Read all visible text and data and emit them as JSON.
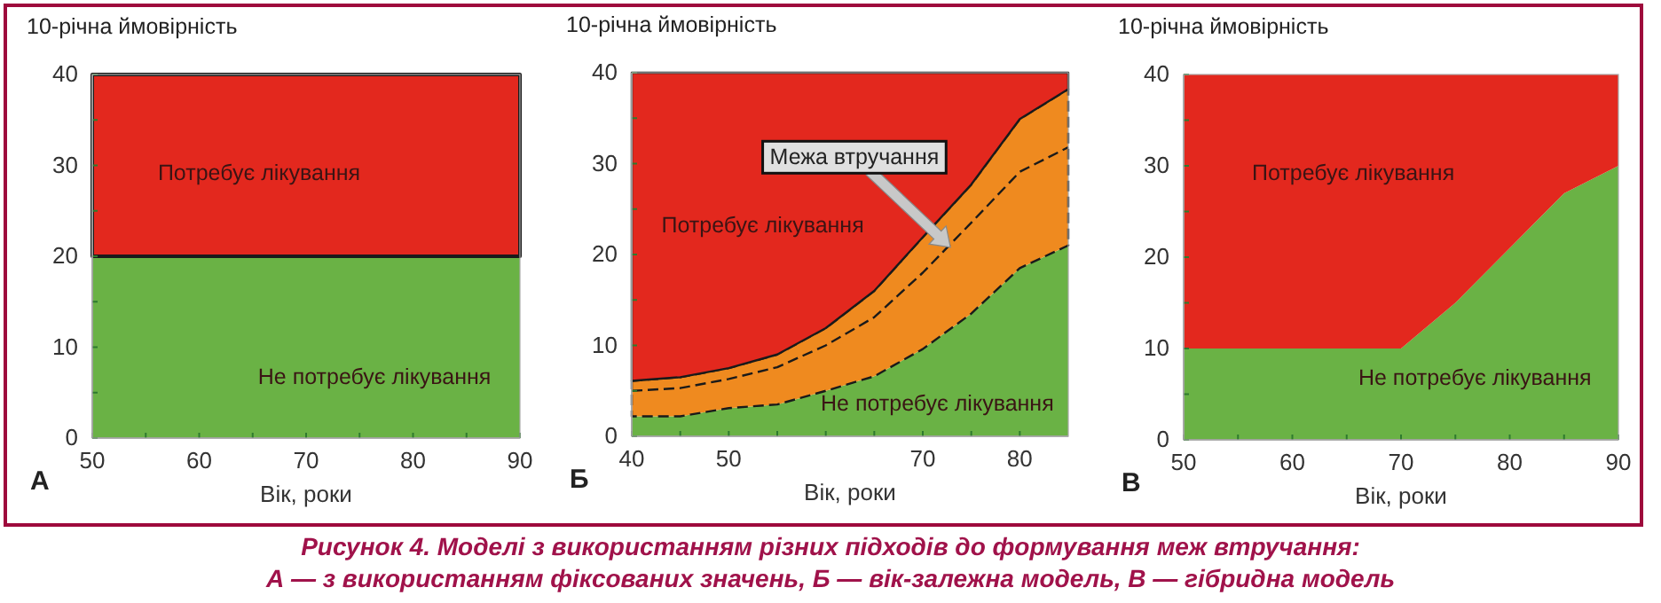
{
  "chart_data": [
    {
      "type": "area",
      "title": "А",
      "xlabel": "Вік, роки",
      "ylabel": "10-річна ймовірність",
      "stacked": true,
      "x": [
        50,
        90
      ],
      "xlim": [
        50,
        90
      ],
      "ylim": [
        0,
        40
      ],
      "xticks": [
        50,
        {
          "value": 55,
          "label": null
        },
        60,
        {
          "value": 65,
          "label": null
        },
        70,
        {
          "value": 75,
          "label": null
        },
        80,
        {
          "value": 85,
          "label": null
        },
        90
      ],
      "yticks": [
        0,
        {
          "value": 5,
          "label": null
        },
        10,
        {
          "value": 15,
          "label": null
        },
        20,
        {
          "value": 25,
          "label": null
        },
        30,
        {
          "value": 35,
          "label": null
        },
        40
      ],
      "series": [
        {
          "name": "Не потребує лікування",
          "color": "#6ab245",
          "values": [
            20,
            20
          ]
        },
        {
          "name": "Потребує лікування",
          "color": "#e3281e",
          "line_style": "solid",
          "values": [
            20,
            20
          ]
        }
      ],
      "annotations": [
        "Рисунок 4. Моделі з використанням різних підходів до формування меж втручання:",
        "А — з використанням фіксованих значень, Б — вік-залежна модель, В — гібридна модель"
      ]
    },
    {
      "type": "area",
      "title": "Б",
      "xlabel": "Вік, роки",
      "ylabel": "10-річна ймовірність",
      "stacked": true,
      "x": [
        40,
        45,
        50,
        55,
        60,
        65,
        70,
        75,
        80,
        85
      ],
      "xlim": [
        40,
        85
      ],
      "ylim": [
        0,
        40
      ],
      "xticks": [
        40,
        {
          "value": 45,
          "label": null
        },
        50,
        {
          "value": 55,
          "label": null
        },
        {
          "value": 60,
          "label": null
        },
        {
          "value": 65,
          "label": null
        },
        70,
        {
          "value": 75,
          "label": null
        },
        80
      ],
      "yticks": [
        0,
        {
          "value": 5,
          "label": null
        },
        10,
        {
          "value": 15,
          "label": null
        },
        20,
        {
          "value": 25,
          "label": null
        },
        30,
        {
          "value": 35,
          "label": null
        },
        40
      ],
      "series": [
        {
          "name": "Не потребує лікування",
          "color": "#6ab245",
          "values": [
            2.2,
            2.2,
            3.1,
            3.5,
            5.0,
            6.6,
            9.6,
            13.5,
            18.5,
            21.0
          ]
        },
        {
          "color": "#ef8a1f",
          "line_style": "dashed",
          "values": [
            3.9,
            4.3,
            4.4,
            5.5,
            6.9,
            9.4,
            12.3,
            14.2,
            16.4,
            17.2
          ]
        },
        {
          "name": "Потребує лікування",
          "color": "#e3281e",
          "line_style": "solid",
          "values": [
            33.9,
            33.5,
            32.5,
            31.0,
            28.1,
            24.0,
            18.1,
            12.3,
            5.1,
            1.8
          ]
        },
        {
          "type": "line",
          "color": "#1a1a1a",
          "line_style": "dashed",
          "values": [
            5.0,
            5.3,
            6.3,
            7.6,
            10.0,
            13.1,
            18.0,
            23.5,
            29.1,
            31.8
          ]
        }
      ],
      "annotations": [
        "Межа втручання"
      ]
    },
    {
      "type": "area",
      "title": "В",
      "xlabel": "Вік, роки",
      "ylabel": "10-річна ймовірність",
      "stacked": true,
      "x": [
        50,
        70,
        75,
        80,
        85,
        90
      ],
      "xlim": [
        50,
        90
      ],
      "ylim": [
        0,
        40
      ],
      "xticks": [
        50,
        {
          "value": 55,
          "label": null
        },
        60,
        {
          "value": 65,
          "label": null
        },
        70,
        {
          "value": 75,
          "label": null
        },
        80,
        {
          "value": 85,
          "label": null
        },
        90
      ],
      "yticks": [
        0,
        {
          "value": 5,
          "label": null
        },
        10,
        {
          "value": 15,
          "label": null
        },
        20,
        {
          "value": 25,
          "label": null
        },
        30,
        {
          "value": 35,
          "label": null
        },
        40
      ],
      "series": [
        {
          "name": "Не потребує лікування",
          "color": "#6ab245",
          "values": [
            10,
            10,
            15,
            21,
            27,
            30
          ]
        },
        {
          "name": "Потребує лікування",
          "color": "#e3281e",
          "values": [
            30,
            30,
            25,
            19,
            13,
            10
          ]
        }
      ]
    }
  ]
}
